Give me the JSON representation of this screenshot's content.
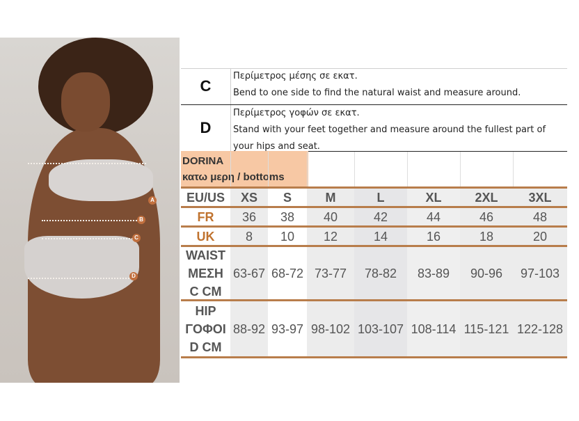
{
  "markers": [
    "A",
    "B",
    "C",
    "D"
  ],
  "descriptions": [
    {
      "letter": "C",
      "greek": "Περίμετρος μέσης σε εκατ.",
      "english": "Bend to one side to find the natural waist and measure around."
    },
    {
      "letter": "D",
      "greek": "Περίμετρος γοφών σε εκατ.",
      "english": "Stand with your feet together and measure around the fullest part of your hips and seat."
    }
  ],
  "brand": {
    "name": "DORINA",
    "subtitle": "κατω μερη / bottoms"
  },
  "colors": {
    "accent": "#b87d4b",
    "brand_bg": "#f7c8a4",
    "label_orange": "#c0732f"
  },
  "table": {
    "header": {
      "label": "EU/US",
      "sizes": [
        "XS",
        "S",
        "M",
        "L",
        "XL",
        "2XL",
        "3XL"
      ]
    },
    "rows": [
      {
        "label": "FR",
        "values": [
          "36",
          "38",
          "40",
          "42",
          "44",
          "46",
          "48"
        ]
      },
      {
        "label": "UK",
        "values": [
          "8",
          "10",
          "12",
          "14",
          "16",
          "18",
          "20"
        ]
      },
      {
        "label_lines": [
          "WAIST",
          "ΜΕΣΗ",
          "C  CM"
        ],
        "values": [
          "63-67",
          "68-72",
          "73-77",
          "78-82",
          "83-89",
          "90-96",
          "97-103"
        ]
      },
      {
        "label_lines": [
          "HIP",
          "ΓΟΦΟΙ",
          "D  CM"
        ],
        "values": [
          "88-92",
          "93-97",
          "98-102",
          "103-107",
          "108-114",
          "115-121",
          "122-128"
        ]
      }
    ]
  }
}
